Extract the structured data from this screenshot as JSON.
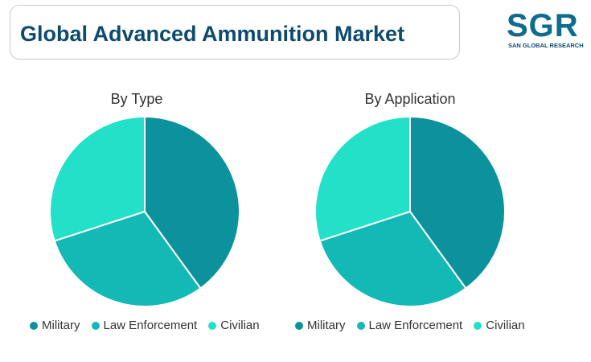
{
  "header": {
    "title": "Global Advanced Ammunition Market"
  },
  "logo": {
    "letters": "SGR",
    "subtitle": "SAN GLOBAL RESEARCH"
  },
  "colors": {
    "military": "#0b929d",
    "law_enforcement": "#13b9b4",
    "civilian": "#22e1c8",
    "title": "#0d4b6e"
  },
  "chart_data": [
    {
      "type": "pie",
      "title": "By Type",
      "categories": [
        "Military",
        "Law Enforcement",
        "Civilian"
      ],
      "values": [
        40,
        30,
        30
      ],
      "legend_position": "bottom"
    },
    {
      "type": "pie",
      "title": "By Application",
      "categories": [
        "Military",
        "Law Enforcement",
        "Civilian"
      ],
      "values": [
        40,
        30,
        30
      ],
      "legend_position": "bottom"
    }
  ]
}
